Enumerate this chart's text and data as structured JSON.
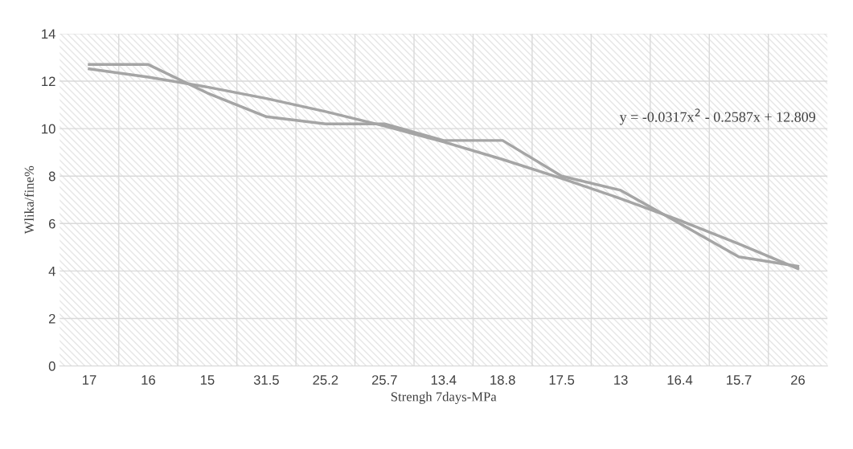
{
  "chart_data": {
    "type": "line",
    "xlabel": "Strengh 7days-MPa",
    "ylabel": "Wlika/fine%",
    "categories": [
      "17",
      "16",
      "15",
      "31.5",
      "25.2",
      "25.7",
      "13.4",
      "18.8",
      "17.5",
      "13",
      "16.4",
      "15.7",
      "26"
    ],
    "series": [
      {
        "color": "#a5a5a5",
        "values": [
          12.7,
          12.7,
          11.5,
          10.5,
          10.2,
          10.2,
          9.5,
          9.5,
          8.0,
          7.4,
          6.0,
          4.6,
          4.2
        ]
      },
      {
        "color": "#a5a5a5",
        "values": [
          12.52,
          12.17,
          11.75,
          11.27,
          10.72,
          10.11,
          9.44,
          8.7,
          7.9,
          7.05,
          6.13,
          5.14,
          4.1
        ]
      }
    ],
    "annotations": [
      "y = -0.0317x$^{2}$ - 0.2587x + 12.809"
    ],
    "ylim": [
      0,
      14
    ],
    "yticks": [
      0,
      2,
      4,
      6,
      8,
      10,
      12,
      14
    ],
    "grid": true,
    "marker": "none",
    "line_style": "solid"
  }
}
